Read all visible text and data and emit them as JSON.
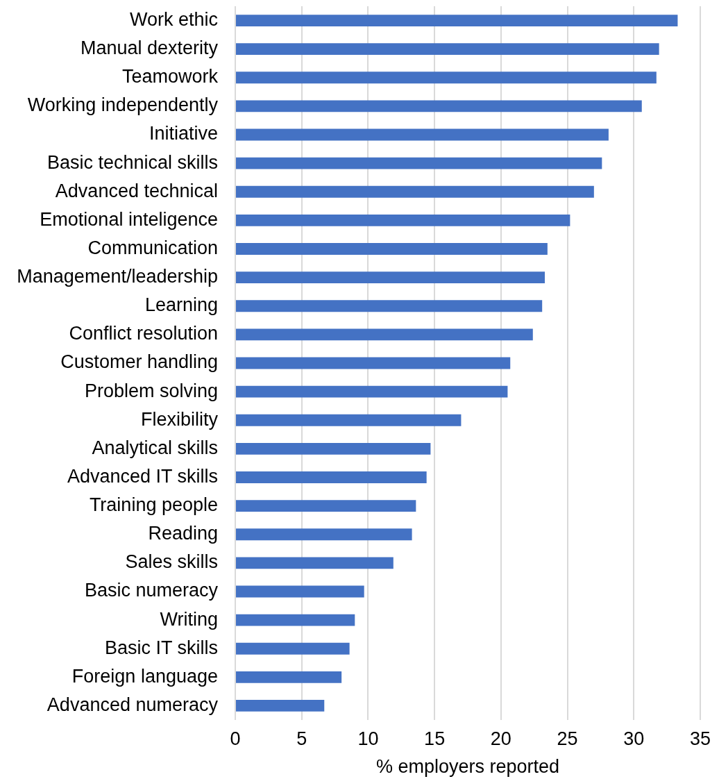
{
  "chart_data": {
    "type": "bar",
    "orientation": "horizontal",
    "categories": [
      "Work ethic",
      "Manual dexterity",
      "Teamowork",
      "Working independently",
      "Initiative",
      "Basic technical skills",
      "Advanced technical",
      "Emotional inteligence",
      "Communication",
      "Management/leadership",
      "Learning",
      "Conflict resolution",
      "Customer handling",
      "Problem solving",
      "Flexibility",
      "Analytical skills",
      "Advanced IT skills",
      "Training people",
      "Reading",
      "Sales skills",
      "Basic numeracy",
      "Writing",
      "Basic IT skills",
      "Foreign language",
      "Advanced numeracy"
    ],
    "values": [
      33.3,
      31.9,
      31.7,
      30.6,
      28.1,
      27.6,
      27.0,
      25.2,
      23.5,
      23.3,
      23.1,
      22.4,
      20.7,
      20.5,
      17.0,
      14.7,
      14.4,
      13.6,
      13.3,
      11.9,
      9.7,
      9.0,
      8.6,
      8.0,
      6.7
    ],
    "color": "#4472c4",
    "xlabel": "% employers reported",
    "xlim": [
      0,
      35
    ],
    "xticks": [
      0,
      5,
      10,
      15,
      20,
      25,
      30,
      35
    ],
    "grid": "x"
  }
}
